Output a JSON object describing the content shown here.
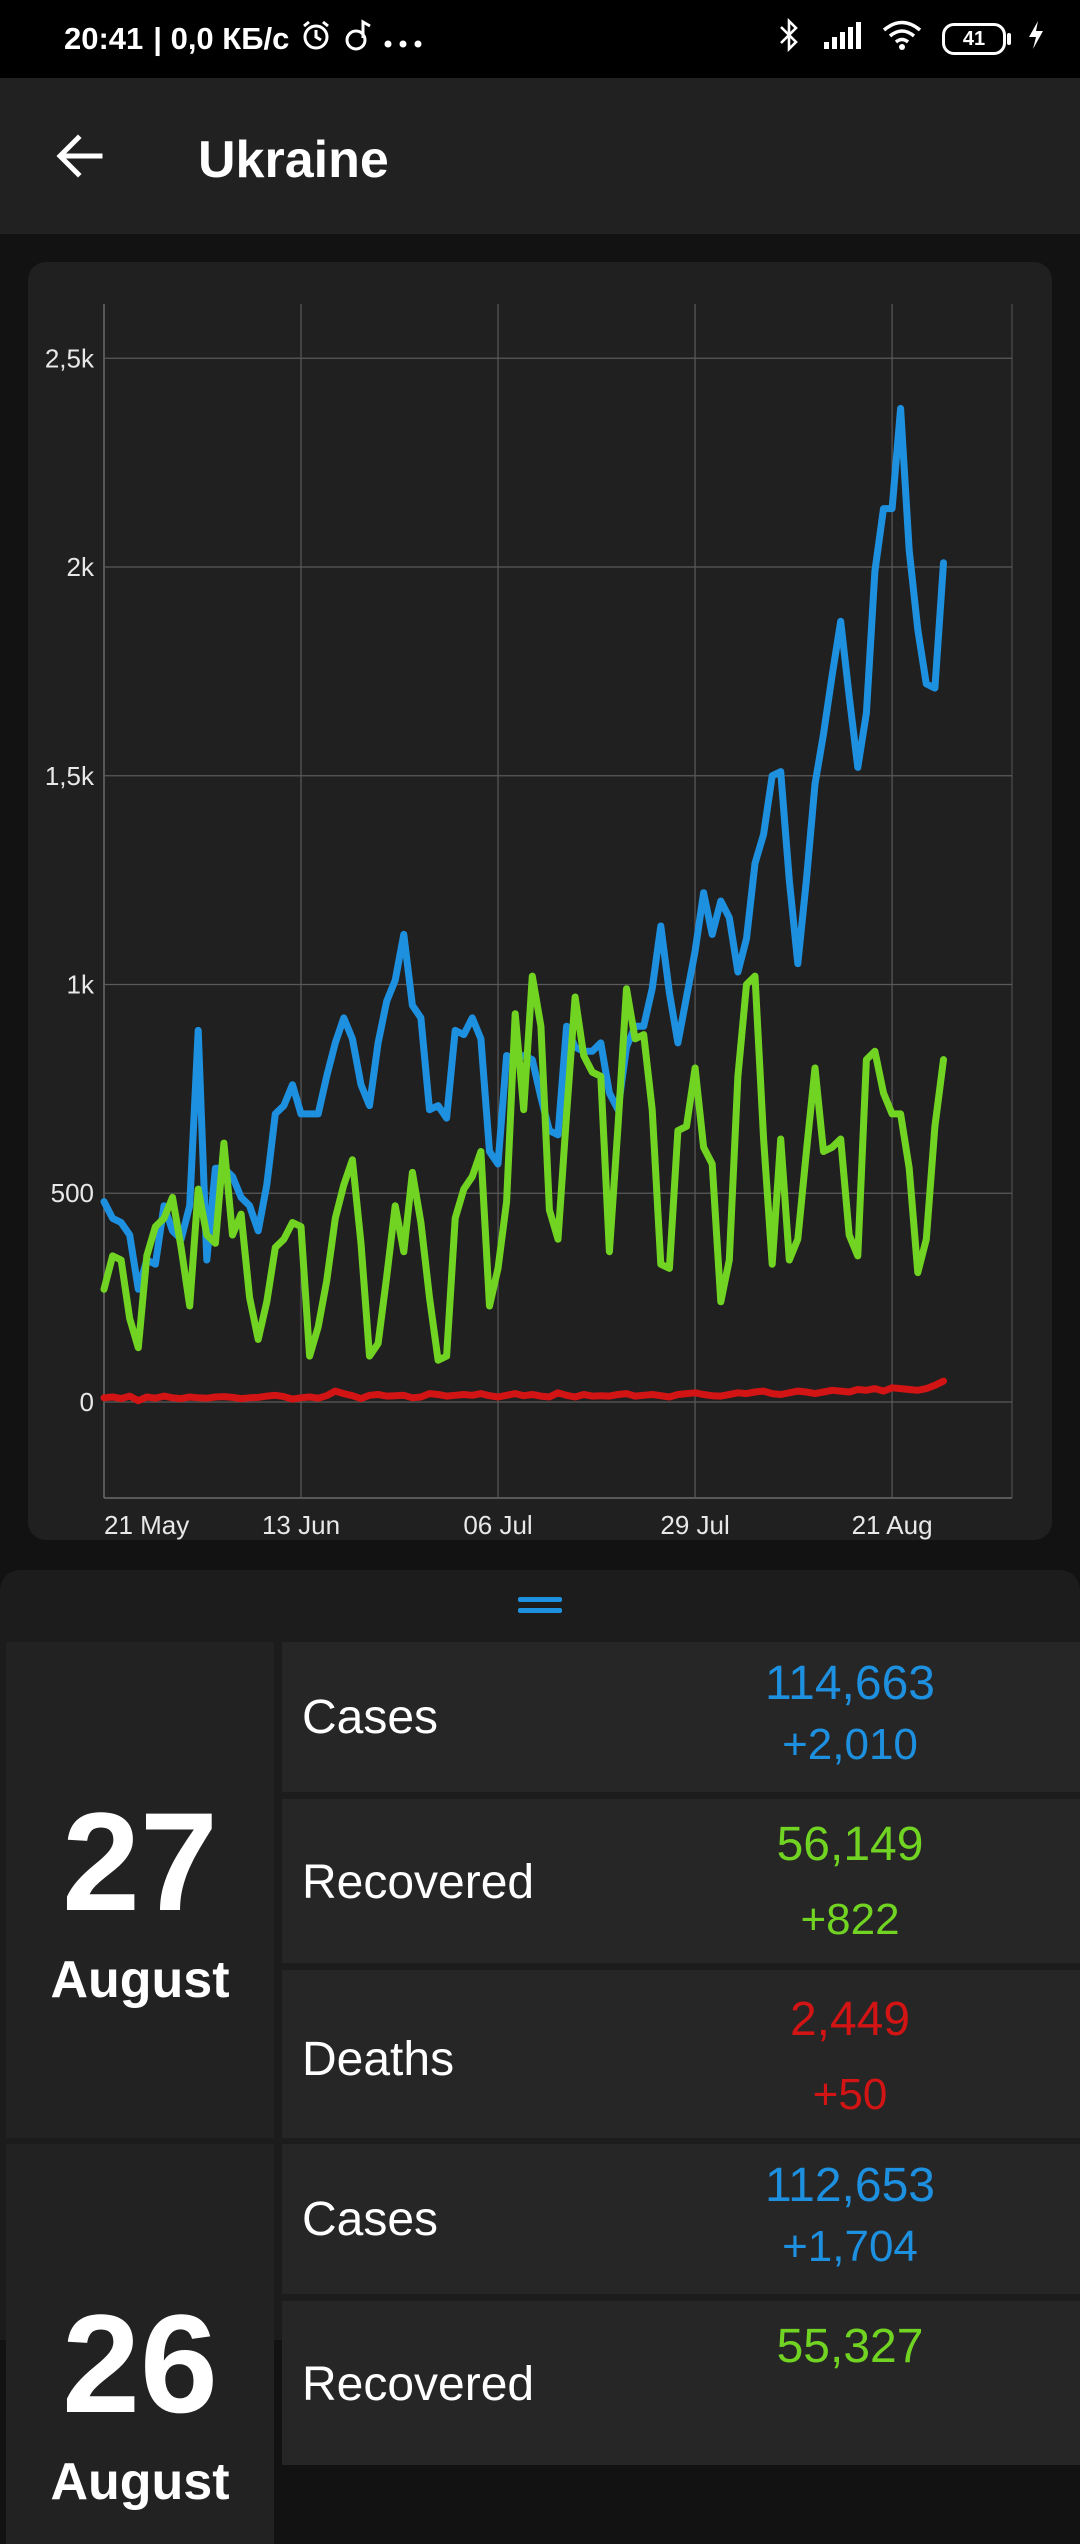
{
  "status_bar": {
    "time": "20:41",
    "network_speed": "| 0,0 КБ/с",
    "battery": "41",
    "icons": [
      "alarm-icon",
      "music-note-icon",
      "more-dots-icon",
      "bluetooth-icon",
      "signal-icon",
      "wifi-icon",
      "battery-icon",
      "charging-icon"
    ]
  },
  "app_bar": {
    "title": "Ukraine",
    "back_icon": "arrow-left-icon"
  },
  "colors": {
    "cases": "#1e90e0",
    "recovered": "#72d422",
    "deaths": "#d21414"
  },
  "chart_data": {
    "type": "line",
    "title": "",
    "xlabel": "",
    "ylabel": "",
    "x_tick_labels": [
      "21 May",
      "13 Jun",
      "06 Jul",
      "29 Jul",
      "21 Aug"
    ],
    "y_tick_labels": [
      "0",
      "500",
      "1k",
      "1,5k",
      "2k",
      "2,5k"
    ],
    "y_ticks": [
      0,
      500,
      1000,
      1500,
      2000,
      2500
    ],
    "ylim": [
      -230,
      2630
    ],
    "x_range_days": [
      0,
      106
    ],
    "x_tick_days": [
      0,
      23,
      46,
      69,
      92
    ],
    "grid": true,
    "series": [
      {
        "key": "cases",
        "values": [
          480,
          440,
          430,
          400,
          270,
          340,
          330,
          470,
          410,
          390,
          470,
          890,
          340,
          560,
          560,
          540,
          490,
          470,
          410,
          520,
          690,
          710,
          760,
          690,
          690,
          690,
          780,
          860,
          920,
          870,
          760,
          710,
          860,
          960,
          1010,
          1120,
          950,
          920,
          700,
          710,
          680,
          890,
          880,
          920,
          870,
          600,
          570,
          830,
          820,
          830,
          820,
          730,
          650,
          640,
          900,
          850,
          840,
          840,
          860,
          740,
          700,
          850,
          900,
          900,
          990,
          1140,
          980,
          860,
          970,
          1080,
          1220,
          1120,
          1200,
          1160,
          1030,
          1110,
          1290,
          1360,
          1500,
          1510,
          1250,
          1050,
          1250,
          1480,
          1600,
          1740,
          1870,
          1690,
          1520,
          1650,
          1990,
          2140,
          2140,
          2380,
          2040,
          1850,
          1720,
          1710,
          2010
        ],
        "x_days": [
          0,
          1,
          2,
          3,
          4,
          5,
          6,
          7,
          8,
          9,
          10,
          11,
          12,
          13,
          14,
          15,
          16,
          17,
          18,
          19,
          20,
          21,
          22,
          23,
          24,
          25,
          26,
          27,
          28,
          29,
          30,
          31,
          32,
          33,
          34,
          35,
          36,
          37,
          38,
          39,
          40,
          41,
          42,
          43,
          44,
          45,
          46,
          47,
          48,
          49,
          50,
          51,
          52,
          53,
          54,
          55,
          56,
          57,
          58,
          59,
          60,
          61,
          62,
          63,
          64,
          65,
          66,
          67,
          68,
          69,
          70,
          71,
          72,
          73,
          74,
          75,
          76,
          77,
          78,
          79,
          80,
          81,
          82,
          83,
          84,
          85,
          86,
          87,
          88,
          89,
          90,
          91,
          92,
          93,
          94,
          95,
          96,
          97,
          98
        ]
      },
      {
        "key": "recovered",
        "values": [
          270,
          350,
          340,
          200,
          130,
          350,
          420,
          440,
          490,
          370,
          230,
          510,
          400,
          380,
          620,
          400,
          450,
          250,
          150,
          240,
          370,
          390,
          430,
          420,
          110,
          180,
          290,
          440,
          520,
          580,
          380,
          110,
          140,
          300,
          470,
          360,
          550,
          430,
          250,
          100,
          110,
          440,
          510,
          540,
          600,
          230,
          320,
          480,
          930,
          700,
          1020,
          900,
          460,
          390,
          690,
          970,
          830,
          790,
          780,
          360,
          660,
          990,
          870,
          880,
          700,
          330,
          320,
          650,
          660,
          800,
          610,
          570,
          240,
          340,
          780,
          1000,
          1020,
          630,
          330,
          630,
          340,
          390,
          600,
          800,
          600,
          610,
          630,
          400,
          350,
          820,
          840,
          740,
          690,
          690,
          560,
          310,
          390,
          660,
          820
        ],
        "x_days": [
          0,
          1,
          2,
          3,
          4,
          5,
          6,
          7,
          8,
          9,
          10,
          11,
          12,
          13,
          14,
          15,
          16,
          17,
          18,
          19,
          20,
          21,
          22,
          23,
          24,
          25,
          26,
          27,
          28,
          29,
          30,
          31,
          32,
          33,
          34,
          35,
          36,
          37,
          38,
          39,
          40,
          41,
          42,
          43,
          44,
          45,
          46,
          47,
          48,
          49,
          50,
          51,
          52,
          53,
          54,
          55,
          56,
          57,
          58,
          59,
          60,
          61,
          62,
          63,
          64,
          65,
          66,
          67,
          68,
          69,
          70,
          71,
          72,
          73,
          74,
          75,
          76,
          77,
          78,
          79,
          80,
          81,
          82,
          83,
          84,
          85,
          86,
          87,
          88,
          89,
          90,
          91,
          92,
          93,
          94,
          95,
          96,
          97,
          98
        ]
      },
      {
        "key": "deaths",
        "values": [
          10,
          12,
          8,
          14,
          3,
          12,
          9,
          14,
          10,
          8,
          12,
          10,
          9,
          12,
          13,
          11,
          8,
          10,
          11,
          14,
          16,
          13,
          7,
          10,
          12,
          9,
          15,
          26,
          20,
          15,
          8,
          16,
          18,
          14,
          15,
          16,
          10,
          12,
          20,
          18,
          14,
          16,
          18,
          16,
          20,
          15,
          12,
          16,
          20,
          15,
          18,
          14,
          12,
          22,
          16,
          12,
          18,
          14,
          15,
          14,
          18,
          20,
          14,
          16,
          18,
          15,
          12,
          18,
          20,
          22,
          18,
          15,
          14,
          18,
          22,
          20,
          24,
          26,
          20,
          18,
          22,
          26,
          24,
          20,
          24,
          28,
          26,
          24,
          30,
          28,
          32,
          26,
          34,
          32,
          30,
          28,
          32,
          40,
          50
        ],
        "x_days": [
          0,
          1,
          2,
          3,
          4,
          5,
          6,
          7,
          8,
          9,
          10,
          11,
          12,
          13,
          14,
          15,
          16,
          17,
          18,
          19,
          20,
          21,
          22,
          23,
          24,
          25,
          26,
          27,
          28,
          29,
          30,
          31,
          32,
          33,
          34,
          35,
          36,
          37,
          38,
          39,
          40,
          41,
          42,
          43,
          44,
          45,
          46,
          47,
          48,
          49,
          50,
          51,
          52,
          53,
          54,
          55,
          56,
          57,
          58,
          59,
          60,
          61,
          62,
          63,
          64,
          65,
          66,
          67,
          68,
          69,
          70,
          71,
          72,
          73,
          74,
          75,
          76,
          77,
          78,
          79,
          80,
          81,
          82,
          83,
          84,
          85,
          86,
          87,
          88,
          89,
          90,
          91,
          92,
          93,
          94,
          95,
          96,
          97,
          98
        ]
      }
    ]
  },
  "days": [
    {
      "day": "27",
      "month": "August",
      "rows": [
        {
          "label": "Cases",
          "total": "114,663",
          "delta": "+2,010",
          "color": "#1e90e0"
        },
        {
          "label": "Recovered",
          "total": "56,149",
          "delta": "+822",
          "color": "#72d422"
        },
        {
          "label": "Deaths",
          "total": "2,449",
          "delta": "+50",
          "color": "#d21414"
        }
      ]
    },
    {
      "day": "26",
      "month": "August",
      "rows": [
        {
          "label": "Cases",
          "total": "112,653",
          "delta": "+1,704",
          "color": "#1e90e0"
        },
        {
          "label": "Recovered",
          "total": "55,327",
          "delta": "",
          "color": "#72d422"
        }
      ]
    }
  ]
}
